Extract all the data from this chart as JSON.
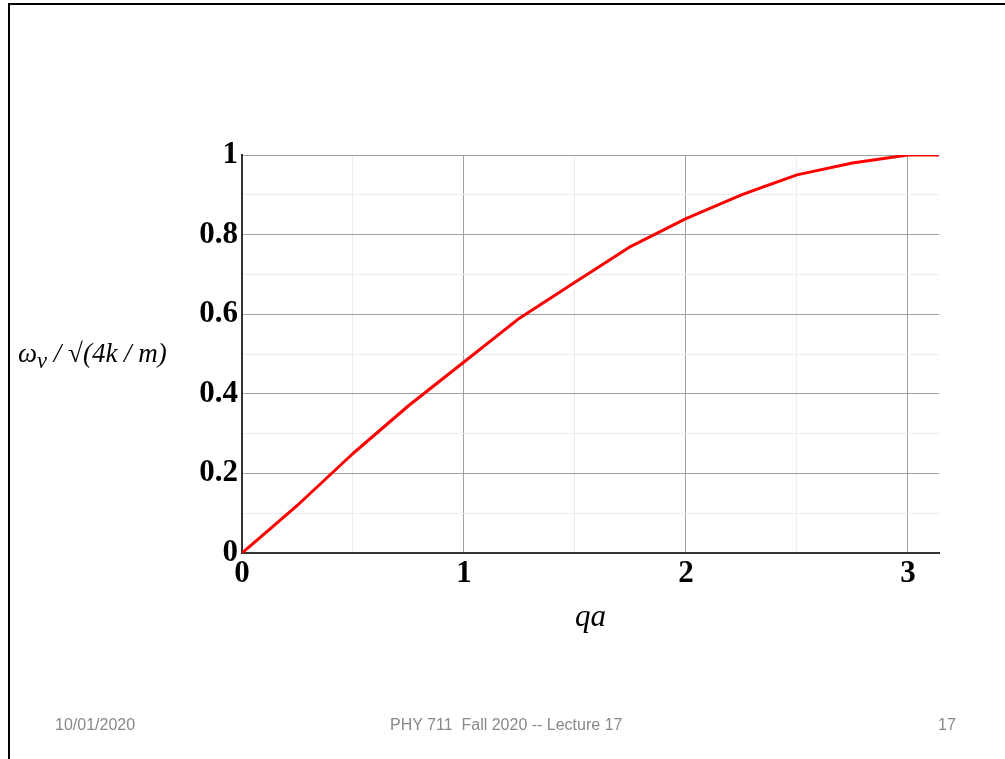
{
  "chart_data": {
    "type": "line",
    "xlabel": "qa",
    "ylabel": "ω$_{ν}$ / √(4k / m)",
    "x": [
      0,
      0.25,
      0.5,
      0.75,
      1,
      1.25,
      1.5,
      1.75,
      2,
      2.25,
      2.5,
      2.75,
      3,
      3.14
    ],
    "series": [
      {
        "color": "#ff0000",
        "values": [
          0,
          0.12,
          0.25,
          0.37,
          0.48,
          0.59,
          0.68,
          0.77,
          0.84,
          0.9,
          0.95,
          0.98,
          1.0,
          1.0
        ]
      }
    ],
    "xlim": [
      0,
      3.14
    ],
    "ylim": [
      0,
      1
    ],
    "xticks": [
      0,
      {
        "value": 0.5,
        "label": null
      },
      1,
      {
        "value": 1.5,
        "label": null
      },
      2,
      {
        "value": 2.5,
        "label": null
      },
      3
    ],
    "yticks": [
      0,
      {
        "value": 0.1,
        "label": null
      },
      0.2,
      {
        "value": 0.3,
        "label": null
      },
      0.4,
      {
        "value": 0.5,
        "label": null
      },
      0.6,
      {
        "value": 0.7,
        "label": null
      },
      0.8,
      {
        "value": 0.9,
        "label": null
      },
      1
    ],
    "grid": true,
    "marker": "none",
    "line_style": "solid",
    "legend": false,
    "annotations": [
      "10/01/2020",
      "PHY 711  Fall 2020 -- Lecture 17",
      "17"
    ]
  }
}
